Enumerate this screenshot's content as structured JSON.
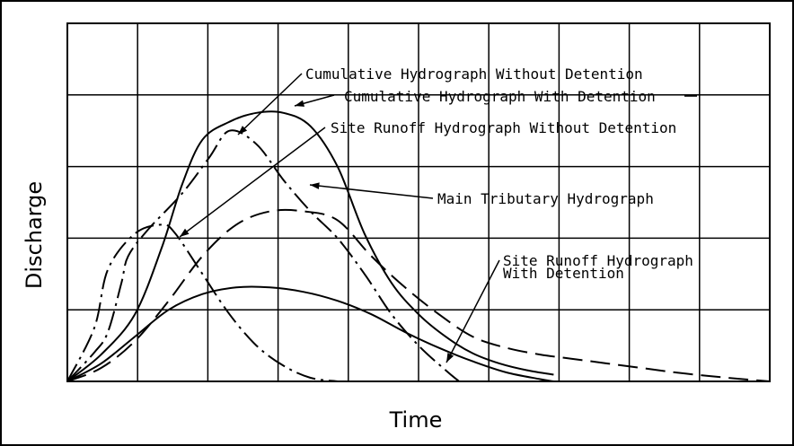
{
  "chart_data": {
    "type": "line",
    "xlabel": "Time",
    "ylabel": "Discharge",
    "grid": true,
    "series": [
      {
        "name": "Cumulative Hydrograph Without Detention",
        "style": "dash-dot",
        "x": [
          0,
          4,
          6,
          8,
          9,
          12,
          17,
          21,
          24,
          28,
          32,
          36,
          40,
          44,
          48,
          52,
          56,
          58
        ],
        "y": [
          0,
          6.5,
          11,
          22,
          28,
          34,
          42,
          50,
          56,
          53,
          45,
          38,
          32,
          24,
          15,
          8,
          2.5,
          0
        ]
      },
      {
        "name": "Cumulative Hydrograph With Detention",
        "style": "solid",
        "x": [
          0,
          5,
          10,
          14,
          17,
          20,
          24,
          28,
          32,
          36,
          40,
          44,
          48,
          52,
          56,
          60,
          64,
          68,
          72
        ],
        "y": [
          0,
          6,
          15,
          30,
          44,
          54,
          58,
          60,
          60,
          57,
          48,
          33,
          22,
          15,
          10,
          6.3,
          4,
          2.5,
          1.5
        ]
      },
      {
        "name": "Site Runoff Hydrograph Without Detention",
        "style": "dash-dot",
        "x": [
          0,
          4,
          6,
          10,
          14,
          16,
          20,
          24,
          28,
          32,
          36,
          40
        ],
        "y": [
          0,
          12,
          25,
          33,
          35,
          33,
          24,
          15,
          8,
          3.5,
          0.8,
          0
        ]
      },
      {
        "name": "Main Tributary Hydrograph",
        "style": "dashed",
        "x": [
          0,
          5,
          10,
          15,
          20,
          25,
          30,
          35,
          40,
          45,
          50,
          55,
          60,
          65,
          70,
          75,
          80,
          85,
          90,
          95,
          100,
          104
        ],
        "y": [
          0,
          3,
          9,
          18,
          28,
          35,
          38,
          38,
          36,
          28,
          21,
          15,
          10,
          7.5,
          6,
          5,
          4,
          3,
          2,
          1.2,
          0.5,
          0
        ]
      },
      {
        "name": "Site Runoff Hydrograph With Detention",
        "style": "solid",
        "x": [
          0,
          5,
          10,
          15,
          20,
          25,
          30,
          35,
          40,
          45,
          50,
          55,
          60,
          65,
          70,
          72
        ],
        "y": [
          0,
          4,
          10,
          16,
          19.5,
          21,
          21,
          20,
          18,
          15,
          11,
          7.5,
          4.5,
          2,
          0.5,
          0
        ]
      }
    ],
    "annotations": [
      "Cumulative Hydrograph Without Detention",
      "Cumulative Hydrograph With Detention",
      "Site Runoff Hydrograph Without Detention",
      "Main Tributary Hydrograph",
      "Site Runoff Hydrograph",
      "With Detention"
    ]
  }
}
